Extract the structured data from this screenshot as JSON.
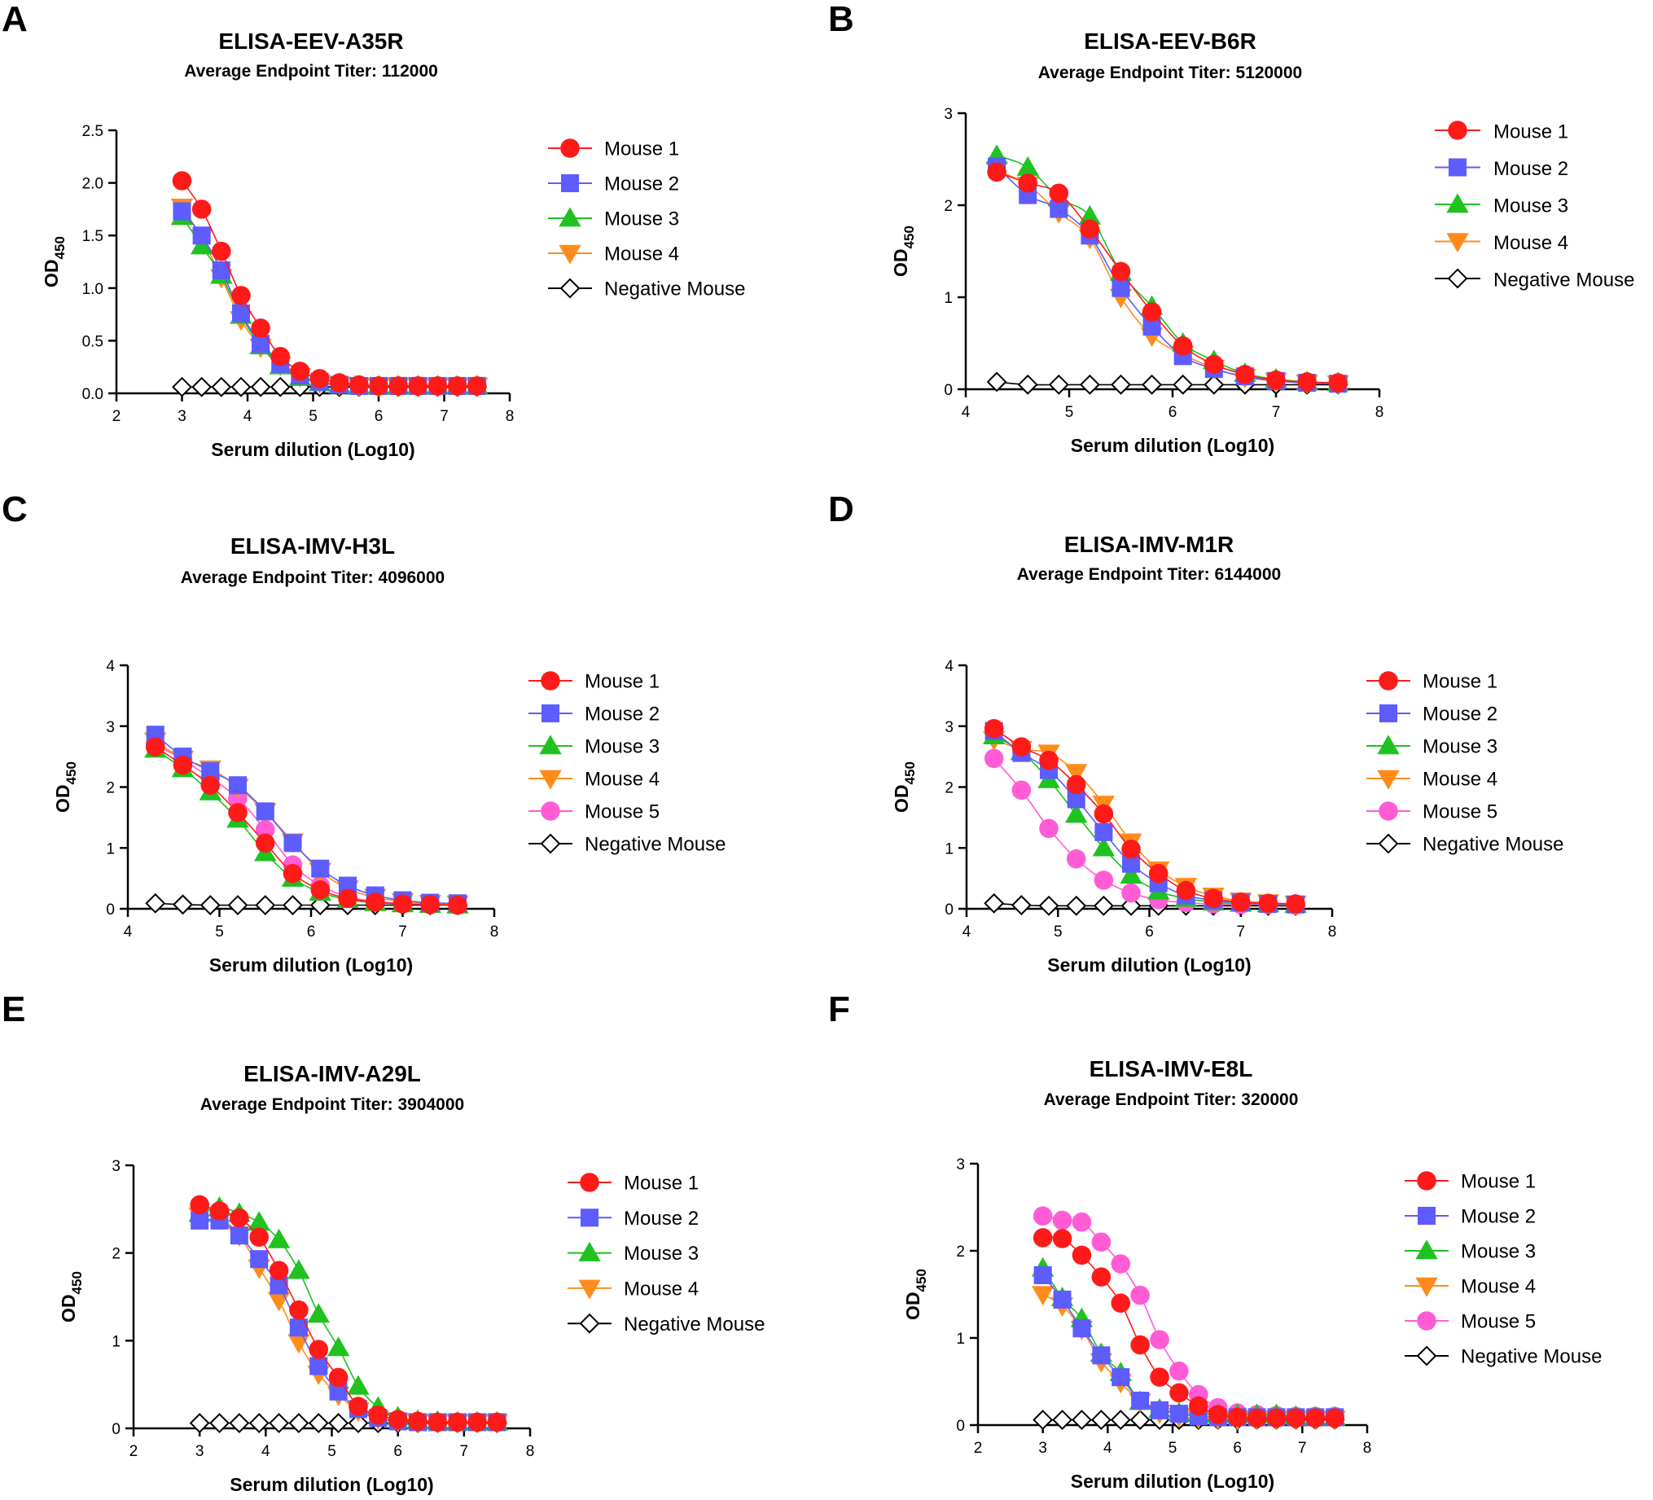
{
  "figure": {
    "panel_letters": [
      "A",
      "B",
      "C",
      "D",
      "E",
      "F"
    ]
  },
  "colors": {
    "Mouse 1": "#ff1a1a",
    "Mouse 2": "#5c5cff",
    "Mouse 3": "#1fc21f",
    "Mouse 4": "#ff8c1a",
    "Mouse 5": "#ff5cd6",
    "Negative Mouse": "#000000"
  },
  "markers": {
    "Mouse 1": "circle",
    "Mouse 2": "square",
    "Mouse 3": "triangle-up",
    "Mouse 4": "triangle-down",
    "Mouse 5": "circle",
    "Negative Mouse": "diamond-open"
  },
  "chart_data": [
    {
      "panel": "A",
      "type": "line",
      "title": "ELISA-EEV-A35R",
      "subtitle": "Average Endpoint Titer: 112000",
      "xlabel": "Serum dilution (Log10)",
      "ylabel": "OD450",
      "xlim": [
        2,
        8
      ],
      "ylim": [
        0,
        2.5
      ],
      "xticks": [
        "2",
        "3",
        "4",
        "5",
        "6",
        "7",
        "8"
      ],
      "yticks": [
        "0.0",
        "0.5",
        "1.0",
        "1.5",
        "2.0",
        "2.5"
      ],
      "x": [
        3.0,
        3.3,
        3.6,
        3.9,
        4.2,
        4.5,
        4.8,
        5.1,
        5.4,
        5.7,
        6.0,
        6.3,
        6.6,
        6.9,
        7.2,
        7.5
      ],
      "series": [
        {
          "name": "Mouse 1",
          "values": [
            2.02,
            1.75,
            1.35,
            0.93,
            0.62,
            0.35,
            0.21,
            0.14,
            0.1,
            0.08,
            0.07,
            0.07,
            0.07,
            0.07,
            0.07,
            0.07
          ]
        },
        {
          "name": "Mouse 2",
          "values": [
            1.73,
            1.5,
            1.17,
            0.76,
            0.47,
            0.28,
            0.17,
            0.11,
            0.08,
            0.07,
            0.07,
            0.07,
            0.07,
            0.07,
            0.07,
            0.07
          ]
        },
        {
          "name": "Mouse 3",
          "values": [
            1.68,
            1.4,
            1.12,
            0.74,
            0.45,
            0.26,
            0.15,
            0.1,
            0.08,
            0.07,
            0.07,
            0.07,
            0.07,
            0.07,
            0.07,
            0.07
          ]
        },
        {
          "name": "Mouse 4",
          "values": [
            1.77,
            1.48,
            1.1,
            0.7,
            0.44,
            0.27,
            0.16,
            0.1,
            0.08,
            0.07,
            0.07,
            0.07,
            0.07,
            0.07,
            0.07,
            0.07
          ]
        },
        {
          "name": "Negative Mouse",
          "values": [
            0.06,
            0.06,
            0.06,
            0.06,
            0.06,
            0.06,
            0.06,
            0.06,
            0.06,
            0.06,
            0.06,
            0.06,
            0.06,
            0.06,
            0.06,
            0.06
          ]
        }
      ],
      "legend": [
        "Mouse 1",
        "Mouse 2",
        "Mouse 3",
        "Mouse 4",
        "Negative Mouse"
      ]
    },
    {
      "panel": "B",
      "type": "line",
      "title": "ELISA-EEV-B6R",
      "subtitle": "Average Endpoint Titer: 5120000",
      "xlabel": "Serum dilution (Log10)",
      "ylabel": "OD450",
      "xlim": [
        4,
        8
      ],
      "ylim": [
        0,
        3
      ],
      "xticks": [
        "4",
        "5",
        "6",
        "7",
        "8"
      ],
      "yticks": [
        "0",
        "1",
        "2",
        "3"
      ],
      "x": [
        4.3,
        4.6,
        4.9,
        5.2,
        5.5,
        5.8,
        6.1,
        6.4,
        6.7,
        7.0,
        7.3,
        7.6
      ],
      "series": [
        {
          "name": "Mouse 1",
          "values": [
            2.36,
            2.24,
            2.13,
            1.74,
            1.28,
            0.84,
            0.47,
            0.27,
            0.16,
            0.1,
            0.08,
            0.07
          ]
        },
        {
          "name": "Mouse 2",
          "values": [
            2.42,
            2.11,
            1.96,
            1.67,
            1.1,
            0.68,
            0.36,
            0.22,
            0.14,
            0.09,
            0.07,
            0.06
          ]
        },
        {
          "name": "Mouse 3",
          "values": [
            2.54,
            2.41,
            2.08,
            1.88,
            1.27,
            0.9,
            0.5,
            0.31,
            0.17,
            0.11,
            0.08,
            0.07
          ]
        },
        {
          "name": "Mouse 4",
          "values": [
            2.38,
            2.22,
            1.92,
            1.64,
            1.0,
            0.58,
            0.38,
            0.23,
            0.13,
            0.09,
            0.07,
            0.06
          ]
        },
        {
          "name": "Negative Mouse",
          "values": [
            0.08,
            0.05,
            0.05,
            0.05,
            0.05,
            0.05,
            0.05,
            0.05,
            0.05,
            0.05,
            0.05,
            0.05
          ]
        }
      ],
      "legend": [
        "Mouse 1",
        "Mouse 2",
        "Mouse 3",
        "Mouse 4",
        "Negative Mouse"
      ]
    },
    {
      "panel": "C",
      "type": "line",
      "title": "ELISA-IMV-H3L",
      "subtitle": "Average Endpoint Titer: 4096000",
      "xlabel": "Serum dilution (Log10)",
      "ylabel": "OD450",
      "xlim": [
        4,
        8
      ],
      "ylim": [
        0,
        4
      ],
      "xticks": [
        "4",
        "5",
        "6",
        "7",
        "8"
      ],
      "yticks": [
        "0",
        "1",
        "2",
        "3",
        "4"
      ],
      "x": [
        4.3,
        4.6,
        4.9,
        5.2,
        5.5,
        5.8,
        6.1,
        6.4,
        6.7,
        7.0,
        7.3,
        7.6
      ],
      "series": [
        {
          "name": "Mouse 1",
          "values": [
            2.66,
            2.36,
            2.03,
            1.58,
            1.08,
            0.58,
            0.31,
            0.17,
            0.11,
            0.08,
            0.07,
            0.06
          ]
        },
        {
          "name": "Mouse 2",
          "values": [
            2.86,
            2.5,
            2.26,
            2.03,
            1.6,
            1.08,
            0.66,
            0.38,
            0.22,
            0.14,
            0.1,
            0.09
          ]
        },
        {
          "name": "Mouse 3",
          "values": [
            2.62,
            2.3,
            1.92,
            1.47,
            0.92,
            0.5,
            0.27,
            0.15,
            0.1,
            0.08,
            0.07,
            0.06
          ]
        },
        {
          "name": "Mouse 4",
          "values": [
            2.76,
            2.46,
            2.3,
            2.0,
            1.6,
            1.1,
            0.62,
            0.33,
            0.19,
            0.12,
            0.09,
            0.08
          ]
        },
        {
          "name": "Mouse 5",
          "values": [
            2.7,
            2.45,
            2.15,
            1.82,
            1.3,
            0.72,
            0.38,
            0.2,
            0.12,
            0.09,
            0.07,
            0.06
          ]
        },
        {
          "name": "Negative Mouse",
          "values": [
            0.09,
            0.07,
            0.06,
            0.06,
            0.06,
            0.06,
            0.06,
            0.06,
            0.06,
            0.06,
            0.06,
            0.06
          ]
        }
      ],
      "legend": [
        "Mouse 1",
        "Mouse 2",
        "Mouse 3",
        "Mouse 4",
        "Mouse 5",
        "Negative Mouse"
      ]
    },
    {
      "panel": "D",
      "type": "line",
      "title": "ELISA-IMV-M1R",
      "subtitle": "Average Endpoint Titer: 6144000",
      "xlabel": "Serum dilution (Log10)",
      "ylabel": "OD450",
      "xlim": [
        4,
        8
      ],
      "ylim": [
        0,
        4
      ],
      "xticks": [
        "4",
        "5",
        "6",
        "7",
        "8"
      ],
      "yticks": [
        "0",
        "1",
        "2",
        "3",
        "4"
      ],
      "x": [
        4.3,
        4.6,
        4.9,
        5.2,
        5.5,
        5.8,
        6.1,
        6.4,
        6.7,
        7.0,
        7.3,
        7.6
      ],
      "series": [
        {
          "name": "Mouse 1",
          "values": [
            2.96,
            2.66,
            2.44,
            2.04,
            1.56,
            0.98,
            0.58,
            0.3,
            0.17,
            0.11,
            0.09,
            0.08
          ]
        },
        {
          "name": "Mouse 2",
          "values": [
            2.92,
            2.56,
            2.28,
            1.8,
            1.26,
            0.74,
            0.42,
            0.22,
            0.14,
            0.1,
            0.08,
            0.07
          ]
        },
        {
          "name": "Mouse 3",
          "values": [
            2.84,
            2.58,
            2.12,
            1.55,
            1.0,
            0.55,
            0.29,
            0.17,
            0.11,
            0.09,
            0.08,
            0.07
          ]
        },
        {
          "name": "Mouse 4",
          "values": [
            2.78,
            2.62,
            2.56,
            2.24,
            1.72,
            1.1,
            0.64,
            0.37,
            0.21,
            0.13,
            0.1,
            0.08
          ]
        },
        {
          "name": "Mouse 5",
          "values": [
            2.47,
            1.95,
            1.32,
            0.82,
            0.47,
            0.26,
            0.15,
            0.1,
            0.08,
            0.07,
            0.07,
            0.06
          ]
        },
        {
          "name": "Negative Mouse",
          "values": [
            0.09,
            0.06,
            0.05,
            0.05,
            0.05,
            0.05,
            0.05,
            0.05,
            0.05,
            0.05,
            0.05,
            0.05
          ]
        }
      ],
      "legend": [
        "Mouse 1",
        "Mouse 2",
        "Mouse 3",
        "Mouse 4",
        "Mouse 5",
        "Negative Mouse"
      ]
    },
    {
      "panel": "E",
      "type": "line",
      "title": "ELISA-IMV-A29L",
      "subtitle": "Average Endpoint Titer: 3904000",
      "xlabel": "Serum dilution (Log10)",
      "ylabel": "OD450",
      "xlim": [
        2,
        8
      ],
      "ylim": [
        0,
        3
      ],
      "xticks": [
        "2",
        "3",
        "4",
        "5",
        "6",
        "7",
        "8"
      ],
      "yticks": [
        "0",
        "1",
        "2",
        "3"
      ],
      "x": [
        3.0,
        3.3,
        3.6,
        3.9,
        4.2,
        4.5,
        4.8,
        5.1,
        5.4,
        5.7,
        6.0,
        6.3,
        6.6,
        6.9,
        7.2,
        7.5
      ],
      "series": [
        {
          "name": "Mouse 1",
          "values": [
            2.55,
            2.48,
            2.4,
            2.18,
            1.8,
            1.35,
            0.9,
            0.58,
            0.25,
            0.15,
            0.1,
            0.08,
            0.07,
            0.07,
            0.07,
            0.07
          ]
        },
        {
          "name": "Mouse 2",
          "values": [
            2.37,
            2.37,
            2.2,
            1.93,
            1.63,
            1.15,
            0.71,
            0.42,
            0.22,
            0.12,
            0.08,
            0.07,
            0.07,
            0.07,
            0.07,
            0.07
          ]
        },
        {
          "name": "Mouse 3",
          "values": [
            2.45,
            2.52,
            2.45,
            2.35,
            2.15,
            1.8,
            1.3,
            0.92,
            0.48,
            0.24,
            0.13,
            0.09,
            0.08,
            0.07,
            0.07,
            0.07
          ]
        },
        {
          "name": "Mouse 4",
          "values": [
            2.42,
            2.4,
            2.2,
            1.83,
            1.46,
            0.98,
            0.62,
            0.38,
            0.2,
            0.11,
            0.08,
            0.07,
            0.07,
            0.07,
            0.07,
            0.07
          ]
        },
        {
          "name": "Negative Mouse",
          "values": [
            0.06,
            0.06,
            0.06,
            0.06,
            0.06,
            0.06,
            0.06,
            0.06,
            0.06,
            0.06,
            0.06,
            0.06,
            0.06,
            0.06,
            0.06,
            0.06
          ]
        }
      ],
      "legend": [
        "Mouse 1",
        "Mouse 2",
        "Mouse 3",
        "Mouse 4",
        "Negative Mouse"
      ]
    },
    {
      "panel": "F",
      "type": "line",
      "title": "ELISA-IMV-E8L",
      "subtitle": "Average Endpoint Titer: 320000",
      "xlabel": "Serum dilution (Log10)",
      "ylabel": "OD450",
      "xlim": [
        2,
        8
      ],
      "ylim": [
        0,
        3
      ],
      "xticks": [
        "2",
        "3",
        "4",
        "5",
        "6",
        "7",
        "8"
      ],
      "yticks": [
        "0",
        "1",
        "2",
        "3"
      ],
      "x": [
        3.0,
        3.3,
        3.6,
        3.9,
        4.2,
        4.5,
        4.8,
        5.1,
        5.4,
        5.7,
        6.0,
        6.3,
        6.6,
        6.9,
        7.2,
        7.5
      ],
      "series": [
        {
          "name": "Mouse 1",
          "values": [
            2.15,
            2.14,
            1.95,
            1.7,
            1.4,
            0.92,
            0.55,
            0.37,
            0.22,
            0.12,
            0.09,
            0.08,
            0.08,
            0.08,
            0.08,
            0.08
          ]
        },
        {
          "name": "Mouse 2",
          "values": [
            1.72,
            1.44,
            1.11,
            0.8,
            0.55,
            0.28,
            0.17,
            0.13,
            0.1,
            0.09,
            0.09,
            0.09,
            0.09,
            0.09,
            0.09,
            0.09
          ]
        },
        {
          "name": "Mouse 3",
          "values": [
            1.8,
            1.46,
            1.22,
            0.82,
            0.6,
            0.27,
            0.18,
            0.14,
            0.13,
            0.12,
            0.12,
            0.12,
            0.12,
            0.1,
            0.09,
            0.09
          ]
        },
        {
          "name": "Mouse 4",
          "values": [
            1.5,
            1.37,
            1.1,
            0.73,
            0.49,
            0.27,
            0.14,
            0.1,
            0.08,
            0.07,
            0.07,
            0.07,
            0.07,
            0.07,
            0.07,
            0.07
          ]
        },
        {
          "name": "Mouse 5",
          "values": [
            2.4,
            2.35,
            2.33,
            2.1,
            1.85,
            1.49,
            0.98,
            0.62,
            0.35,
            0.2,
            0.14,
            0.12,
            0.11,
            0.1,
            0.1,
            0.1
          ]
        },
        {
          "name": "Negative Mouse",
          "values": [
            0.06,
            0.06,
            0.06,
            0.06,
            0.06,
            0.06,
            0.06,
            0.06,
            0.06,
            0.06,
            0.06,
            0.06,
            0.06,
            0.06,
            0.06,
            0.06
          ]
        }
      ],
      "legend": [
        "Mouse 1",
        "Mouse 2",
        "Mouse 3",
        "Mouse 4",
        "Mouse 5",
        "Negative Mouse"
      ]
    }
  ]
}
